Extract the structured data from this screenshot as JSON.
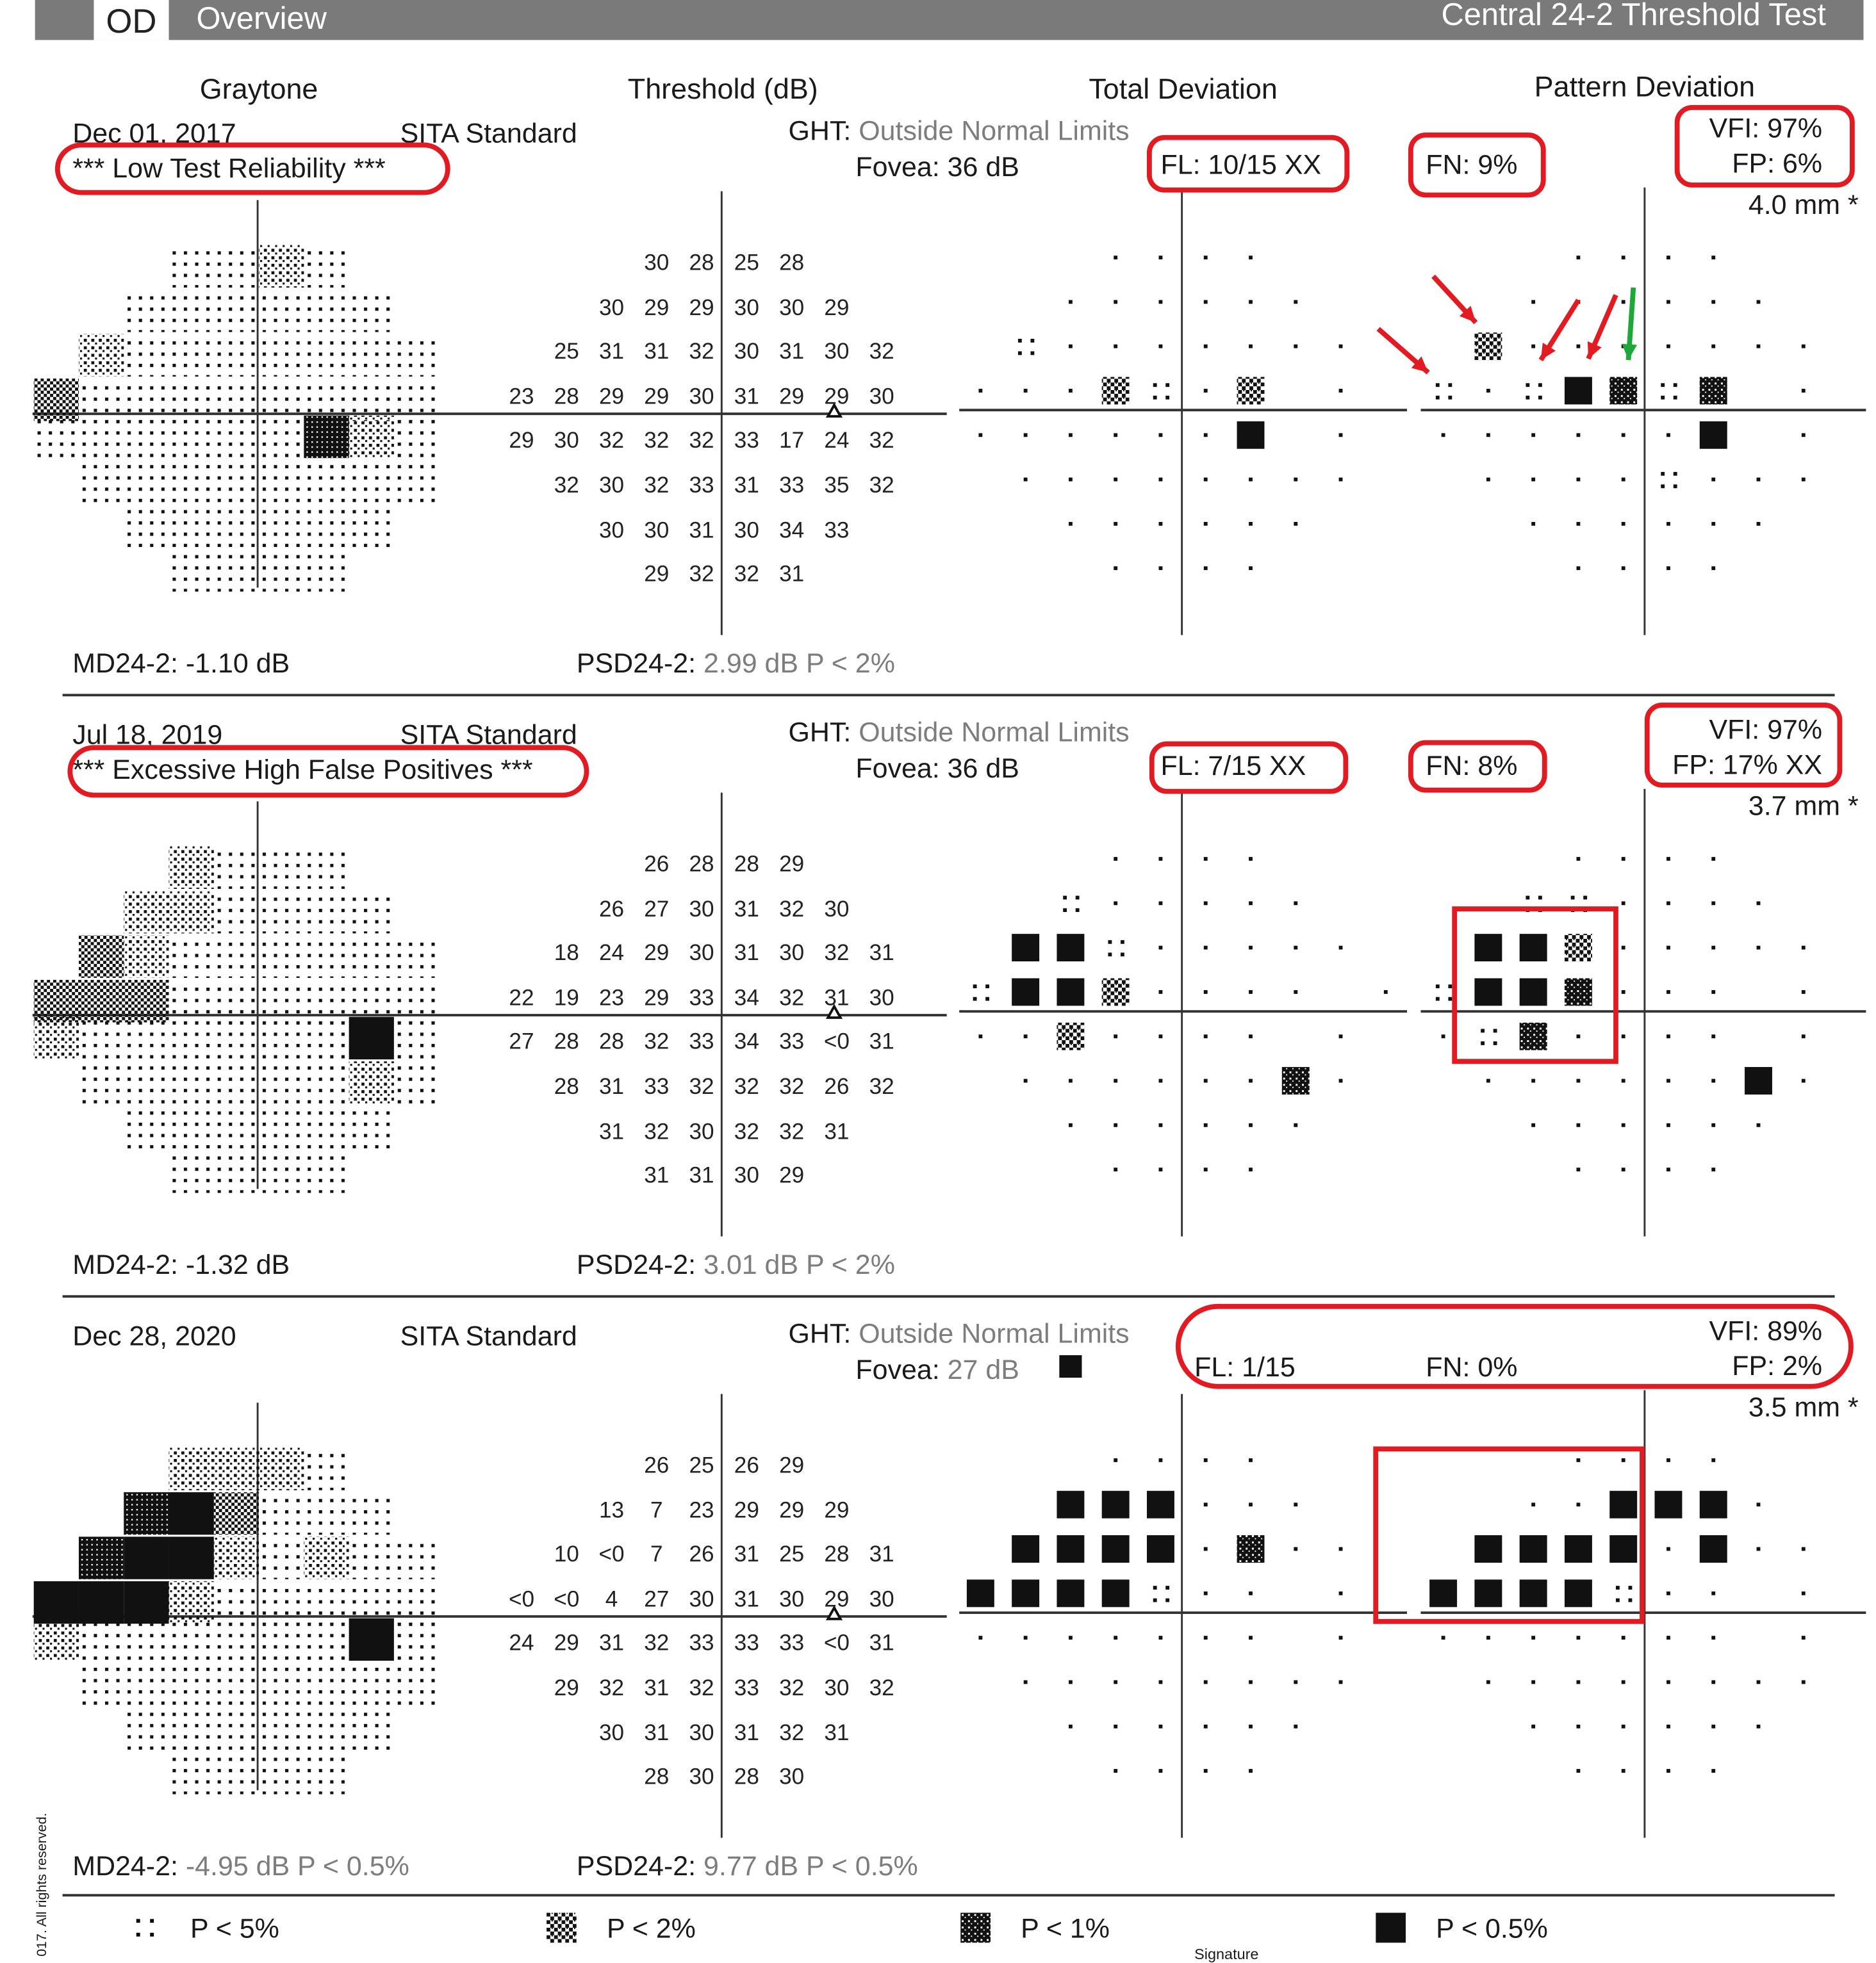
{
  "header": {
    "eye": "OD",
    "title": "Overview",
    "test_name": "Central 24-2 Threshold Test"
  },
  "columns": [
    "Graytone",
    "Threshold (dB)",
    "Total Deviation",
    "Pattern Deviation"
  ],
  "tests": [
    {
      "date": "Dec 01, 2017",
      "strategy": "SITA Standard",
      "ght_label": "GHT:",
      "ght_value": "Outside Normal Limits",
      "fovea_label": "Fovea:",
      "fovea_value": "36 dB",
      "warning": "*** Low Test Reliability ***",
      "fl": "FL: 10/15 XX",
      "fn": "FN: 9%",
      "vfi": "VFI: 97%",
      "fp": "FP: 6%",
      "pupil": "4.0 mm *",
      "md_label": "MD24-2:",
      "md_value": "-1.10 dB",
      "psd_label": "PSD24-2:",
      "psd_value": "2.99 dB P < 2%",
      "thresholds": [
        [
          "30",
          "28",
          "25",
          "28"
        ],
        [
          "30",
          "29",
          "29",
          "30",
          "30",
          "29"
        ],
        [
          "25",
          "31",
          "31",
          "32",
          "30",
          "31",
          "30",
          "32"
        ],
        [
          "23",
          "28",
          "29",
          "29",
          "30",
          "31",
          "29",
          "29",
          "30"
        ],
        [
          "29",
          "30",
          "32",
          "32",
          "32",
          "33",
          "17",
          "24",
          "32"
        ],
        [
          "32",
          "30",
          "32",
          "33",
          "31",
          "33",
          "35",
          "32"
        ],
        [
          "30",
          "30",
          "31",
          "30",
          "34",
          "33"
        ],
        [
          "29",
          "32",
          "32",
          "31"
        ]
      ],
      "total_deviation": [
        "....",
        "......",
        ":.......",
        "...z:.z .",
        "......B .",
        "........",
        "......",
        "...."
      ],
      "pattern_deviation": [
        "....",
        "......",
        "z.......",
        ":.:B#:# .",
        "......B .",
        "....:...",
        "......",
        "...."
      ]
    },
    {
      "date": "Jul 18, 2019",
      "strategy": "SITA Standard",
      "ght_label": "GHT:",
      "ght_value": "Outside Normal Limits",
      "fovea_label": "Fovea:",
      "fovea_value": "36 dB",
      "warning": "*** Excessive High False Positives ***",
      "fl": "FL: 7/15 XX",
      "fn": "FN: 8%",
      "vfi": "VFI: 97%",
      "fp": "FP: 17% XX",
      "pupil": "3.7 mm *",
      "md_label": "MD24-2:",
      "md_value": "-1.32 dB",
      "psd_label": "PSD24-2:",
      "psd_value": "3.01 dB P < 2%",
      "thresholds": [
        [
          "26",
          "28",
          "28",
          "29"
        ],
        [
          "26",
          "27",
          "30",
          "31",
          "32",
          "30"
        ],
        [
          "18",
          "24",
          "29",
          "30",
          "31",
          "30",
          "32",
          "31"
        ],
        [
          "22",
          "19",
          "23",
          "29",
          "33",
          "34",
          "32",
          "31",
          "30"
        ],
        [
          "27",
          "28",
          "28",
          "32",
          "33",
          "34",
          "33",
          "<0",
          "31"
        ],
        [
          "28",
          "31",
          "33",
          "32",
          "32",
          "32",
          "26",
          "32"
        ],
        [
          "31",
          "32",
          "30",
          "32",
          "32",
          "31"
        ],
        [
          "31",
          "31",
          "30",
          "29"
        ]
      ],
      "total_deviation": [
        "....",
        ":.....",
        "BB:.....",
        ":BBz.... .",
        "..z.... .",
        "......#.",
        "......",
        "...."
      ],
      "pattern_deviation": [
        "....",
        "::....",
        "BBz.....",
        ":BB#... .",
        ".:#.... .",
        "......B.",
        "......",
        "...."
      ]
    },
    {
      "date": "Dec 28, 2020",
      "strategy": "SITA Standard",
      "ght_label": "GHT:",
      "ght_value": "Outside Normal Limits",
      "fovea_label": "Fovea:",
      "fovea_value": "27 dB",
      "warning": "",
      "fl": "FL: 1/15",
      "fn": "FN: 0%",
      "vfi": "VFI: 89%",
      "fp": "FP: 2%",
      "pupil": "3.5 mm *",
      "md_label": "MD24-2:",
      "md_value": "-4.95 dB P < 0.5%",
      "psd_label": "PSD24-2:",
      "psd_value": "9.77 dB P < 0.5%",
      "thresholds": [
        [
          "26",
          "25",
          "26",
          "29"
        ],
        [
          "13",
          "7",
          "23",
          "29",
          "29",
          "29"
        ],
        [
          "10",
          "<0",
          "7",
          "26",
          "31",
          "25",
          "28",
          "31"
        ],
        [
          "<0",
          "<0",
          "4",
          "27",
          "30",
          "31",
          "30",
          "29",
          "30"
        ],
        [
          "24",
          "29",
          "31",
          "32",
          "33",
          "33",
          "33",
          "<0",
          "31"
        ],
        [
          "29",
          "32",
          "31",
          "32",
          "33",
          "32",
          "30",
          "32"
        ],
        [
          "30",
          "31",
          "30",
          "31",
          "32",
          "31"
        ],
        [
          "28",
          "30",
          "28",
          "30"
        ]
      ],
      "total_deviation": [
        "....",
        "BBB...",
        "BBBB.#..",
        "BBBB:.. .",
        "....... .",
        "........",
        "......",
        "...."
      ],
      "pattern_deviation": [
        "....",
        "..BBB.",
        "BBBB.B..",
        "BBBB:.. .",
        "....... .",
        "........",
        "......",
        "...."
      ]
    }
  ],
  "legend": [
    {
      "symbol": "p5",
      "label": "P < 5%"
    },
    {
      "symbol": "p2",
      "label": "P < 2%"
    },
    {
      "symbol": "p1",
      "label": "P < 1%"
    },
    {
      "symbol": "p05",
      "label": "P < 0.5%"
    }
  ],
  "footer": {
    "copyright": "017. All rights reserved.",
    "signature": "Signature"
  },
  "colors": {
    "annotation_red": "#e21b23",
    "annotation_green": "#1fa83a",
    "header_bar": "#7a7a7a"
  }
}
